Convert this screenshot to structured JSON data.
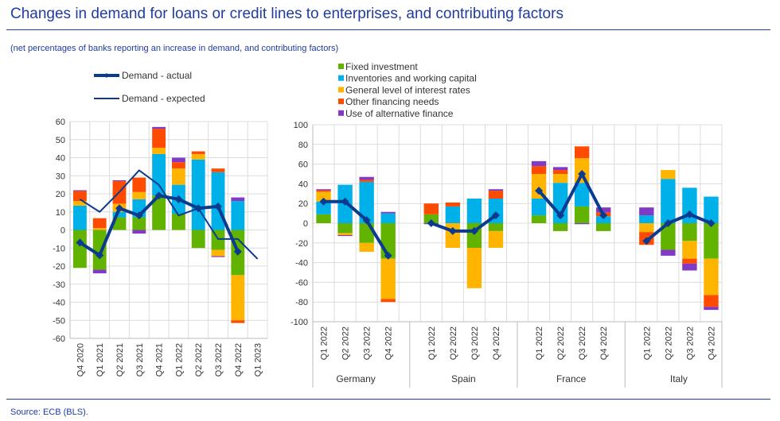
{
  "title": "Changes in demand for loans or credit lines to enterprises, and contributing factors",
  "subtitle": "(net percentages of banks reporting an increase in demand, and contributing factors)",
  "source": "Source: ECB (BLS).",
  "colors": {
    "text": "#1f3c9e",
    "line": "#0b3b8f",
    "factors": [
      "#62b300",
      "#00b0e8",
      "#ffb400",
      "#ff4b00",
      "#8139c6"
    ]
  },
  "chart_data": [
    {
      "type": "bar",
      "stacked": true,
      "ylim": [
        -60,
        60
      ],
      "yticks": [
        60,
        50,
        40,
        30,
        20,
        10,
        0,
        -10,
        -20,
        -30,
        -40,
        -50,
        -60
      ],
      "grid": true,
      "categories": [
        "Q4 2020",
        "Q1 2021",
        "Q2 2021",
        "Q3 2021",
        "Q4 2021",
        "Q1 2022",
        "Q2 2022",
        "Q3 2022",
        "Q4 2022",
        "Q1 2023"
      ],
      "factors": [
        "Fixed investment",
        "Inventories and working capital",
        "General level of interest rates",
        "Other financing needs",
        "Use of alternative finance"
      ],
      "contributions": [
        [
          -21,
          13.5,
          2.5,
          5.5,
          0.5
        ],
        [
          -22,
          0,
          1,
          5.5,
          -2
        ],
        [
          7,
          3,
          4.5,
          12.5,
          0.5
        ],
        [
          7,
          10,
          4,
          8,
          -2
        ],
        [
          19,
          23,
          3.5,
          10.5,
          1
        ],
        [
          9,
          16,
          9,
          3.5,
          2.5
        ],
        [
          -10,
          39,
          3,
          1.5,
          0
        ],
        [
          -11,
          32,
          -3.5,
          2,
          -0.5
        ],
        [
          -25,
          16,
          -25,
          -1.5,
          2
        ],
        null
      ],
      "lines": [
        {
          "name": "Demand - actual",
          "values": [
            -7,
            -14,
            12,
            8,
            19,
            17,
            12,
            13,
            -12,
            null
          ]
        },
        {
          "name": "Demand - expected",
          "values": [
            17,
            10,
            21,
            33,
            25,
            8,
            12,
            -5,
            -5,
            -16
          ]
        }
      ],
      "legend": "top"
    },
    {
      "type": "bar",
      "stacked": true,
      "ylim": [
        -100,
        100
      ],
      "yticks": [
        100,
        80,
        60,
        40,
        20,
        0,
        -20,
        -40,
        -60,
        -80,
        -100
      ],
      "grid": true,
      "legend": "top",
      "groups": [
        {
          "name": "Germany",
          "categories": [
            "Q1 2022",
            "Q2 2022",
            "Q3 2022",
            "Q4 2022"
          ],
          "contributions": [
            [
              9,
              13,
              10,
              1.5,
              1
            ],
            [
              -10,
              39,
              -2,
              0,
              -1
            ],
            [
              -20,
              42,
              -9,
              2,
              3
            ],
            [
              -36,
              10,
              -41,
              -3,
              1.5
            ]
          ],
          "actual": [
            22,
            22,
            3,
            -33
          ]
        },
        {
          "name": "Spain",
          "categories": [
            "Q1 2022",
            "Q2 2022",
            "Q3 2022",
            "Q4 2022"
          ],
          "contributions": [
            [
              9,
              0,
              0,
              11,
              -1
            ],
            [
              0,
              17,
              -25,
              4,
              0
            ],
            [
              -25,
              25,
              -41,
              0,
              0
            ],
            [
              -8,
              25,
              -17,
              8,
              1.5
            ]
          ],
          "actual": [
            0,
            -8,
            -8,
            8
          ]
        },
        {
          "name": "France",
          "categories": [
            "Q1 2022",
            "Q2 2022",
            "Q3 2022",
            "Q4 2022"
          ],
          "contributions": [
            [
              8,
              17,
              25,
              8,
              5
            ],
            [
              -8,
              41,
              9,
              4,
              3
            ],
            [
              17,
              24,
              25,
              12,
              -1
            ],
            [
              -8,
              7,
              0,
              4,
              5
            ]
          ],
          "actual": [
            33,
            8,
            50,
            8
          ]
        },
        {
          "name": "Italy",
          "categories": [
            "Q1 2022",
            "Q2 2022",
            "Q3 2022",
            "Q4 2022"
          ],
          "contributions": [
            [
              0,
              8,
              -9,
              -13,
              8
            ],
            [
              -27,
              45,
              9,
              0,
              -6
            ],
            [
              -18,
              36,
              -18,
              -5,
              -7
            ],
            [
              -36,
              27,
              -37,
              -12,
              -3
            ]
          ],
          "actual": [
            -18,
            0,
            9,
            0
          ]
        }
      ]
    }
  ]
}
